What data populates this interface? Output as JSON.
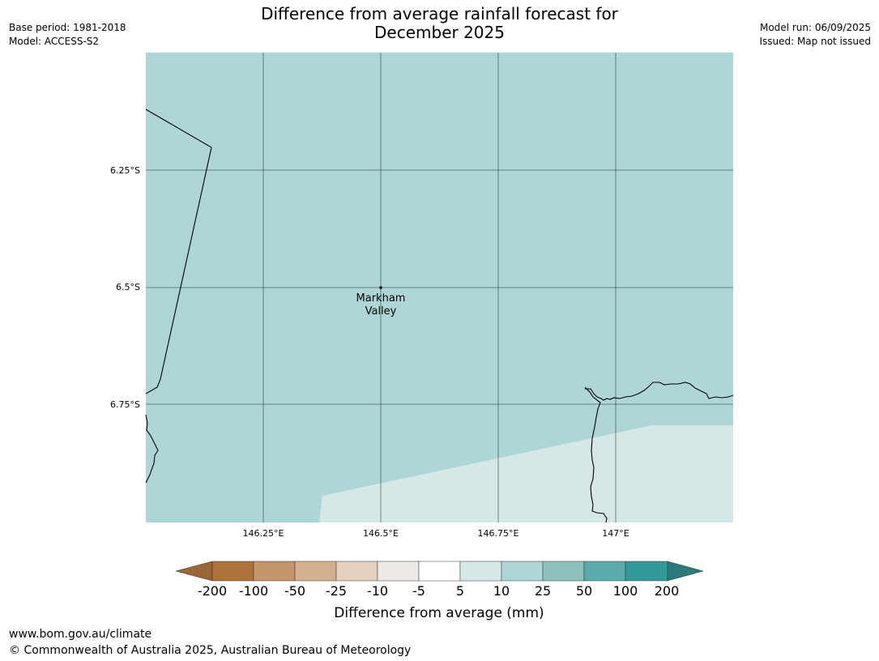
{
  "title": {
    "line1": "Difference from average rainfall forecast for",
    "line2": "December 2025"
  },
  "meta": {
    "base_period": "Base period: 1981-2018",
    "model": "Model: ACCESS-S2",
    "model_run": "Model run: 06/09/2025",
    "issued": "Issued: Map not issued"
  },
  "map": {
    "lat_labels": [
      "6.25°S",
      "6.5°S",
      "6.75°S"
    ],
    "lon_labels": [
      "146.25°E",
      "146.5°E",
      "146.75°E",
      "147°E"
    ],
    "place": {
      "name_line1": "Markham",
      "name_line2": "Valley"
    },
    "colors": {
      "region_10_25": "#aed6d6",
      "region_5_10": "#d5e8e7",
      "grid": "#2c3e3e",
      "coastline": "#000000"
    }
  },
  "legend": {
    "title": "Difference from average (mm)",
    "ticks": [
      "-200",
      "-100",
      "-50",
      "-25",
      "-10",
      "-5",
      "5",
      "10",
      "25",
      "50",
      "100",
      "200"
    ],
    "colors": [
      "#9a6636",
      "#ad733b",
      "#c49569",
      "#d4b18e",
      "#e4d0be",
      "#eeeae7",
      "#ffffff",
      "#d5e8e7",
      "#aed6d6",
      "#8ec0be",
      "#5aabab",
      "#329898",
      "#2c7979"
    ]
  },
  "footer": {
    "url": "www.bom.gov.au/climate",
    "copyright": "© Commonwealth of Australia 2025, Australian Bureau of Meteorology"
  }
}
